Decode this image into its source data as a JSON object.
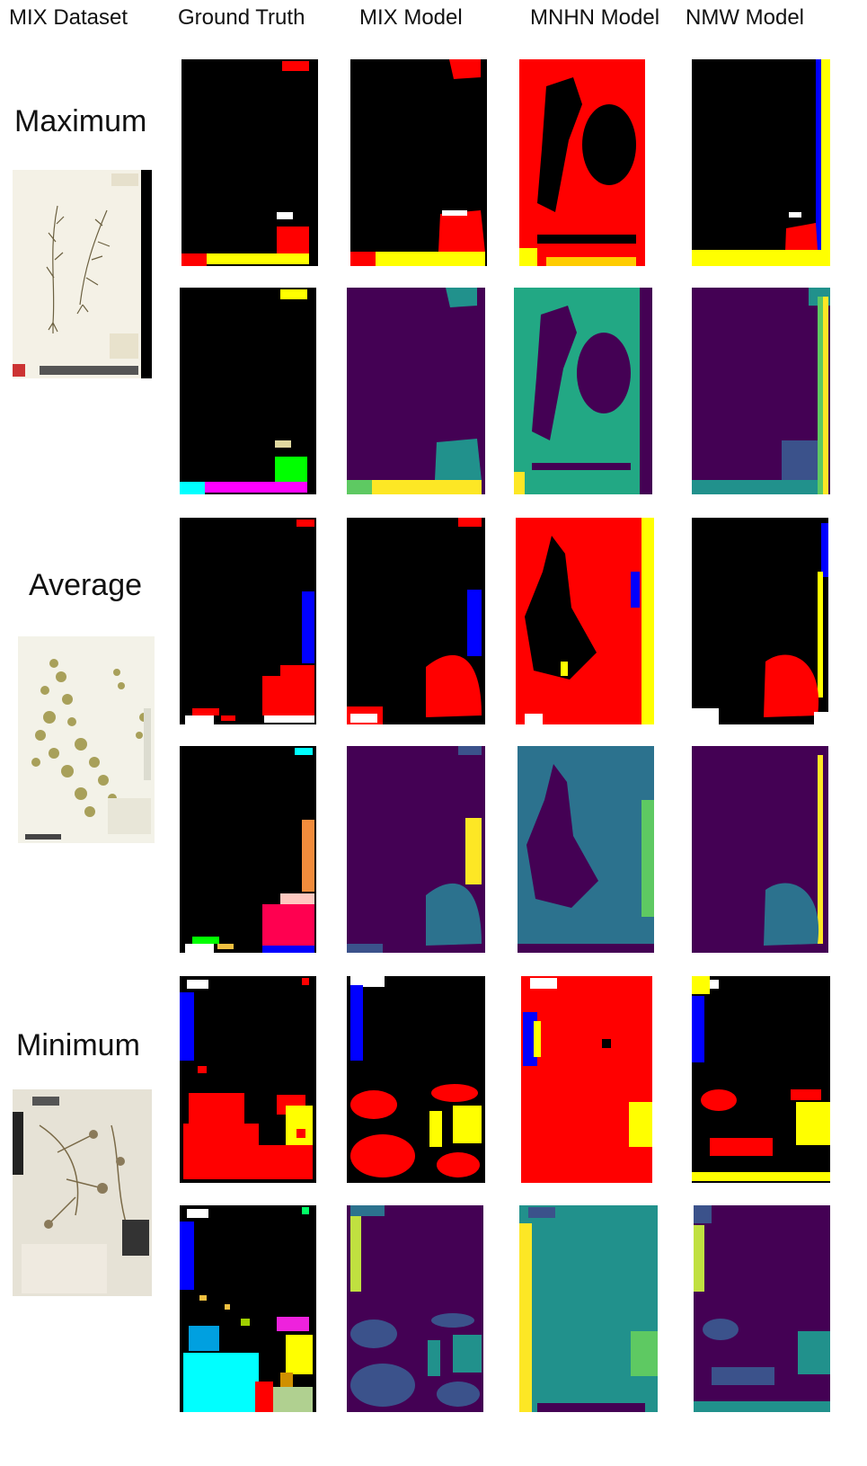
{
  "headers": {
    "dataset": "MIX Dataset",
    "ground_truth": "Ground Truth",
    "mix_model": "MIX Model",
    "mnhn_model": "MNHN Model",
    "nmw_model": "NMW Model"
  },
  "rows": [
    {
      "label": "Maximum"
    },
    {
      "label": "Average"
    },
    {
      "label": "Minimum"
    }
  ],
  "colors": {
    "background_class": "#000000",
    "red": "#ff0000",
    "yellow": "#ffff00",
    "blue": "#0000ff",
    "white": "#ffffff",
    "viridis_dark": "#440154",
    "viridis_teal": "#21918c",
    "viridis_blue": "#3b528b",
    "viridis_green": "#5ec962",
    "viridis_yellow": "#fde725"
  }
}
